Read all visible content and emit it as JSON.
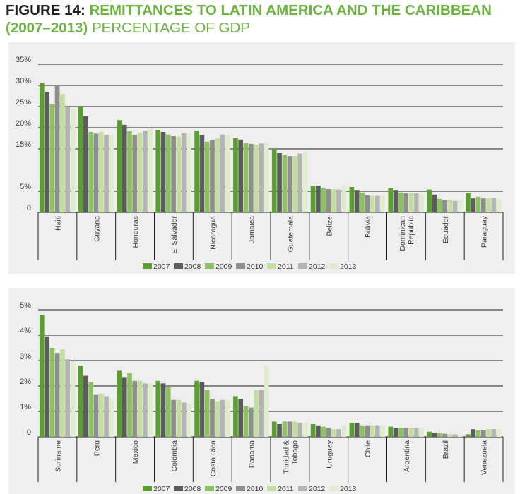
{
  "title": {
    "prefix": "FIGURE 14:",
    "main": "REMITTANCES TO LATIN AMERICA AND THE CARIBBEAN",
    "years": "(2007–2013)",
    "subtitle": "PERCENTAGE OF GDP"
  },
  "colors": [
    "#5a9e2f",
    "#5c5c5c",
    "#8cc162",
    "#8e8e8e",
    "#c3de9e",
    "#b4b4b4",
    "#dfeccd"
  ],
  "chart_data": [
    {
      "type": "bar",
      "title": "",
      "xlabel": "",
      "ylabel": "",
      "ylim": [
        0,
        35
      ],
      "yticks": [
        {
          "value": 0,
          "label": "0"
        },
        {
          "value": 5,
          "label": "5%"
        },
        {
          "value": 15,
          "label": "15%"
        },
        {
          "value": 20,
          "label": "20%"
        },
        {
          "value": 25,
          "label": "25%"
        },
        {
          "value": 30,
          "label": "30%"
        },
        {
          "value": 35,
          "label": "35%"
        }
      ],
      "grid": true,
      "legend": "bottom",
      "categories": [
        "Haiti",
        "Guyana",
        "Honduras",
        "El Salvador",
        "Nicaragua",
        "Jamaica",
        "Guatemala",
        "Belize",
        "Bolivia",
        "Dominican Republic",
        "Ecuador",
        "Paraguay"
      ],
      "category_lines": [
        [
          "Haiti"
        ],
        [
          "Guyana"
        ],
        [
          "Honduras"
        ],
        [
          "El Salvador"
        ],
        [
          "Nicaragua"
        ],
        [
          "Jamaica"
        ],
        [
          "Guatemala"
        ],
        [
          "Belize"
        ],
        [
          "Bolivia"
        ],
        [
          "Dominican",
          "Republic"
        ],
        [
          "Ecuador"
        ],
        [
          "Paraguay"
        ]
      ],
      "series": [
        {
          "name": "2007",
          "values": [
            30.5,
            25.0,
            21.8,
            19.5,
            19.3,
            17.5,
            14.8,
            6.3,
            6.0,
            5.8,
            5.4,
            4.6
          ]
        },
        {
          "name": "2008",
          "values": [
            28.5,
            22.7,
            20.7,
            19.0,
            18.2,
            17.2,
            14.0,
            6.3,
            5.3,
            5.3,
            4.2,
            3.3
          ]
        },
        {
          "name": "2009",
          "values": [
            25.6,
            19.0,
            19.2,
            18.4,
            16.7,
            16.4,
            13.6,
            5.8,
            4.7,
            4.7,
            3.2,
            3.7
          ]
        },
        {
          "name": "2010",
          "values": [
            30.0,
            18.6,
            18.3,
            18.0,
            17.1,
            16.2,
            13.3,
            5.5,
            4.0,
            4.5,
            2.9,
            3.3
          ]
        },
        {
          "name": "2011",
          "values": [
            28.0,
            19.0,
            18.8,
            17.9,
            17.5,
            16.0,
            13.3,
            5.5,
            3.9,
            4.5,
            2.9,
            3.3
          ]
        },
        {
          "name": "2012",
          "values": [
            25.0,
            18.3,
            19.3,
            18.7,
            18.4,
            16.3,
            13.9,
            5.4,
            3.9,
            4.5,
            2.7,
            3.5
          ]
        },
        {
          "name": "2013",
          "values": [
            24.6,
            18.2,
            20.0,
            18.6,
            18.2,
            16.5,
            14.3,
            6.3,
            3.9,
            4.3,
            2.8,
            3.0
          ]
        }
      ]
    },
    {
      "type": "bar",
      "title": "",
      "xlabel": "",
      "ylabel": "",
      "ylim": [
        0,
        5
      ],
      "yticks": [
        {
          "value": 0,
          "label": "0"
        },
        {
          "value": 1,
          "label": "1%"
        },
        {
          "value": 2,
          "label": "2%"
        },
        {
          "value": 3,
          "label": "3%"
        },
        {
          "value": 4,
          "label": "4%"
        },
        {
          "value": 5,
          "label": "5%"
        }
      ],
      "grid": true,
      "legend": "bottom",
      "categories": [
        "Suriname",
        "Peru",
        "Mexico",
        "Colombia",
        "Costa Rica",
        "Panama",
        "Trinidad & Tobago",
        "Uruguay",
        "Chile",
        "Argentina",
        "Brazil",
        "Venezuela"
      ],
      "category_lines": [
        [
          "Suriname"
        ],
        [
          "Peru"
        ],
        [
          "Mexico"
        ],
        [
          "Colombia"
        ],
        [
          "Costa Rica"
        ],
        [
          "Panama"
        ],
        [
          "Trinidad &",
          "Tobago"
        ],
        [
          "Uruguay"
        ],
        [
          "Chile"
        ],
        [
          "Argentina"
        ],
        [
          "Brazil"
        ],
        [
          "Venezuela"
        ]
      ],
      "series": [
        {
          "name": "2007",
          "values": [
            4.8,
            2.8,
            2.6,
            2.2,
            2.2,
            1.6,
            0.6,
            0.5,
            0.55,
            0.4,
            0.2,
            0.1
          ]
        },
        {
          "name": "2008",
          "values": [
            3.95,
            2.4,
            2.35,
            2.1,
            2.15,
            1.5,
            0.5,
            0.45,
            0.55,
            0.35,
            0.15,
            0.3
          ]
        },
        {
          "name": "2009",
          "values": [
            3.5,
            2.15,
            2.5,
            1.95,
            1.85,
            1.2,
            0.6,
            0.4,
            0.45,
            0.35,
            0.15,
            0.25
          ]
        },
        {
          "name": "2010",
          "values": [
            3.3,
            1.65,
            2.2,
            1.45,
            1.5,
            1.15,
            0.6,
            0.35,
            0.45,
            0.35,
            0.12,
            0.25
          ]
        },
        {
          "name": "2011",
          "values": [
            3.45,
            1.7,
            2.2,
            1.45,
            1.4,
            1.85,
            0.6,
            0.3,
            0.45,
            0.35,
            0.1,
            0.3
          ]
        },
        {
          "name": "2012",
          "values": [
            3.05,
            1.6,
            2.1,
            1.35,
            1.45,
            1.85,
            0.55,
            0.3,
            0.45,
            0.35,
            0.1,
            0.3
          ]
        },
        {
          "name": "2013",
          "values": [
            3.0,
            1.5,
            2.1,
            1.3,
            1.45,
            2.8,
            0.55,
            0.45,
            0.45,
            0.35,
            0.1,
            0.3
          ]
        }
      ]
    }
  ]
}
